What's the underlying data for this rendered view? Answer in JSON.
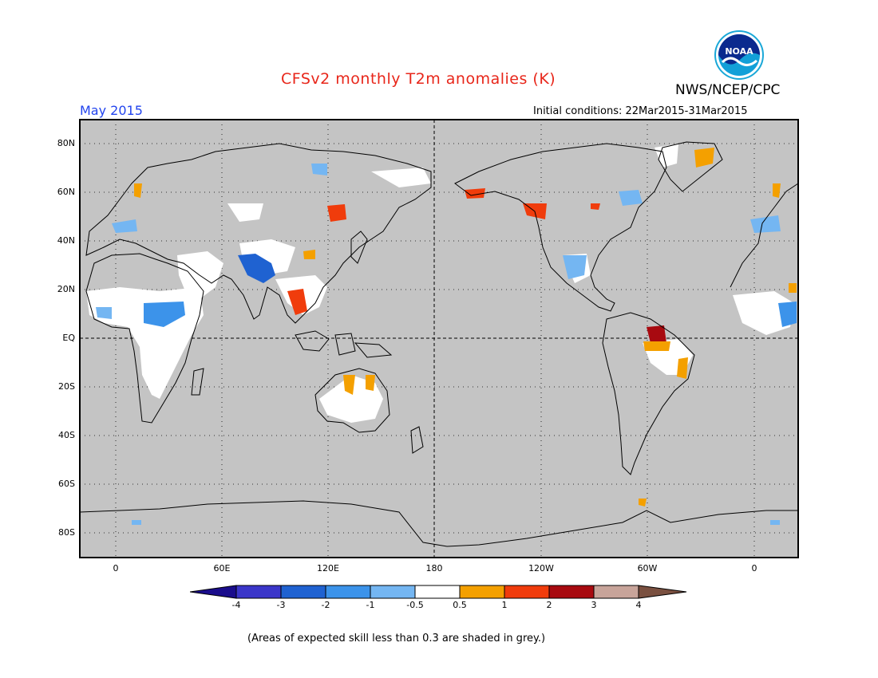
{
  "header": {
    "title": "CFSv2 monthly T2m anomalies (K)",
    "agency": "NWS/NCEP/CPC",
    "month": "May 2015",
    "initial_conditions": "Initial conditions: 22Mar2015-31Mar2015",
    "logo_text": "NOAA"
  },
  "axes": {
    "lat_labels": [
      "80N",
      "60N",
      "40N",
      "20N",
      "EQ",
      "20S",
      "40S",
      "60S",
      "80S"
    ],
    "lon_labels": [
      "0",
      "60E",
      "120E",
      "180",
      "120W",
      "60W",
      "0"
    ]
  },
  "legend": {
    "tick_labels": [
      "-4",
      "-3",
      "-2",
      "-1",
      "-0.5",
      "0.5",
      "1",
      "2",
      "3",
      "4"
    ],
    "colors": {
      "lt_-4": "#1a0d8c",
      "-4_-3": "#3b36c9",
      "-3_-2": "#1f62d1",
      "-2_-1": "#3c93ea",
      "-1_-0.5": "#74b6f2",
      "-0.5_0.5": "#ffffff",
      "0.5_1": "#f4a000",
      "1_2": "#f03c0c",
      "2_3": "#a80a10",
      "3_4": "#c8a49a",
      "gt_4": "#7a5040"
    }
  },
  "colors": {
    "background_grey": "#c4c4c4",
    "title_red": "#e8261a",
    "month_blue": "#2244ee"
  },
  "footnote": "(Areas of expected skill less than 0.3 are shaded in grey.)"
}
